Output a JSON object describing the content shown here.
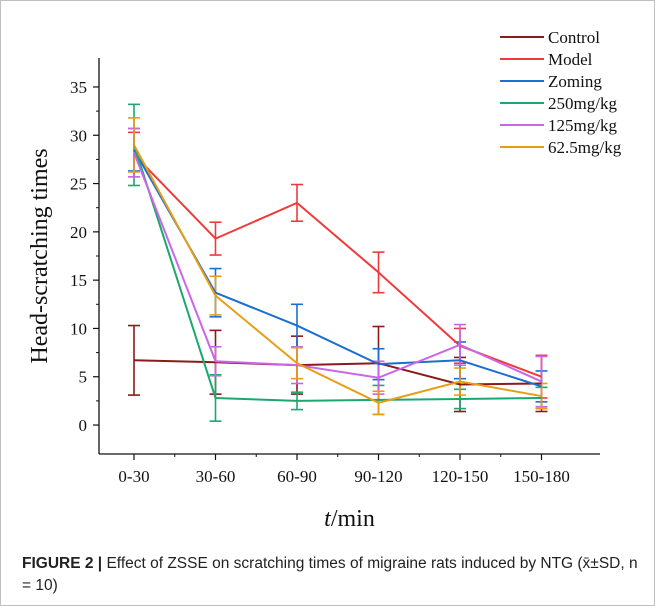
{
  "chart_data": {
    "type": "line",
    "xlabel_italic": "t",
    "xlabel_rest": "/min",
    "ylabel": "Head-scratching times",
    "categories": [
      "0-30",
      "30-60",
      "60-90",
      "90-120",
      "120-150",
      "150-180"
    ],
    "ylim": [
      -3,
      38
    ],
    "yticks": [
      0,
      5,
      10,
      15,
      20,
      25,
      30,
      35
    ],
    "grid": false,
    "legend_position": "top-right",
    "series": [
      {
        "name": "Control",
        "color": "#8b1a1a",
        "values": [
          6.7,
          6.5,
          6.2,
          6.4,
          4.2,
          4.3
        ],
        "sd": [
          3.6,
          3.3,
          3.0,
          3.8,
          2.8,
          2.9
        ]
      },
      {
        "name": "Model",
        "color": "#f03a3a",
        "values": [
          28.0,
          19.3,
          23.0,
          15.8,
          8.2,
          5.0
        ],
        "sd": [
          2.3,
          1.7,
          1.9,
          2.1,
          1.8,
          2.2
        ]
      },
      {
        "name": "Zoming",
        "color": "#1a6fd1",
        "values": [
          28.5,
          13.7,
          10.3,
          6.3,
          6.7,
          4.0
        ],
        "sd": [
          2.2,
          2.5,
          2.2,
          1.6,
          1.9,
          1.6
        ]
      },
      {
        "name": "250mg/kg",
        "color": "#1aa86e",
        "values": [
          29.0,
          2.8,
          2.5,
          2.6,
          2.7,
          2.8
        ],
        "sd": [
          4.2,
          2.4,
          0.9,
          1.5,
          1.0,
          1.1
        ]
      },
      {
        "name": "125mg/kg",
        "color": "#cc66e8",
        "values": [
          28.2,
          6.6,
          6.2,
          4.9,
          8.3,
          4.5
        ],
        "sd": [
          2.5,
          1.5,
          1.9,
          1.7,
          2.1,
          2.6
        ]
      },
      {
        "name": "62.5mg/kg",
        "color": "#e89e14",
        "values": [
          29.0,
          13.4,
          6.4,
          2.3,
          4.5,
          3.0
        ],
        "sd": [
          2.8,
          2.0,
          1.6,
          1.2,
          1.4,
          1.3
        ]
      }
    ]
  },
  "caption": {
    "figure_number": "FIGURE 2 |",
    "text": "Effect of ZSSE on scratching times of migraine rats induced by NTG (x̄±SD, n = 10)"
  }
}
